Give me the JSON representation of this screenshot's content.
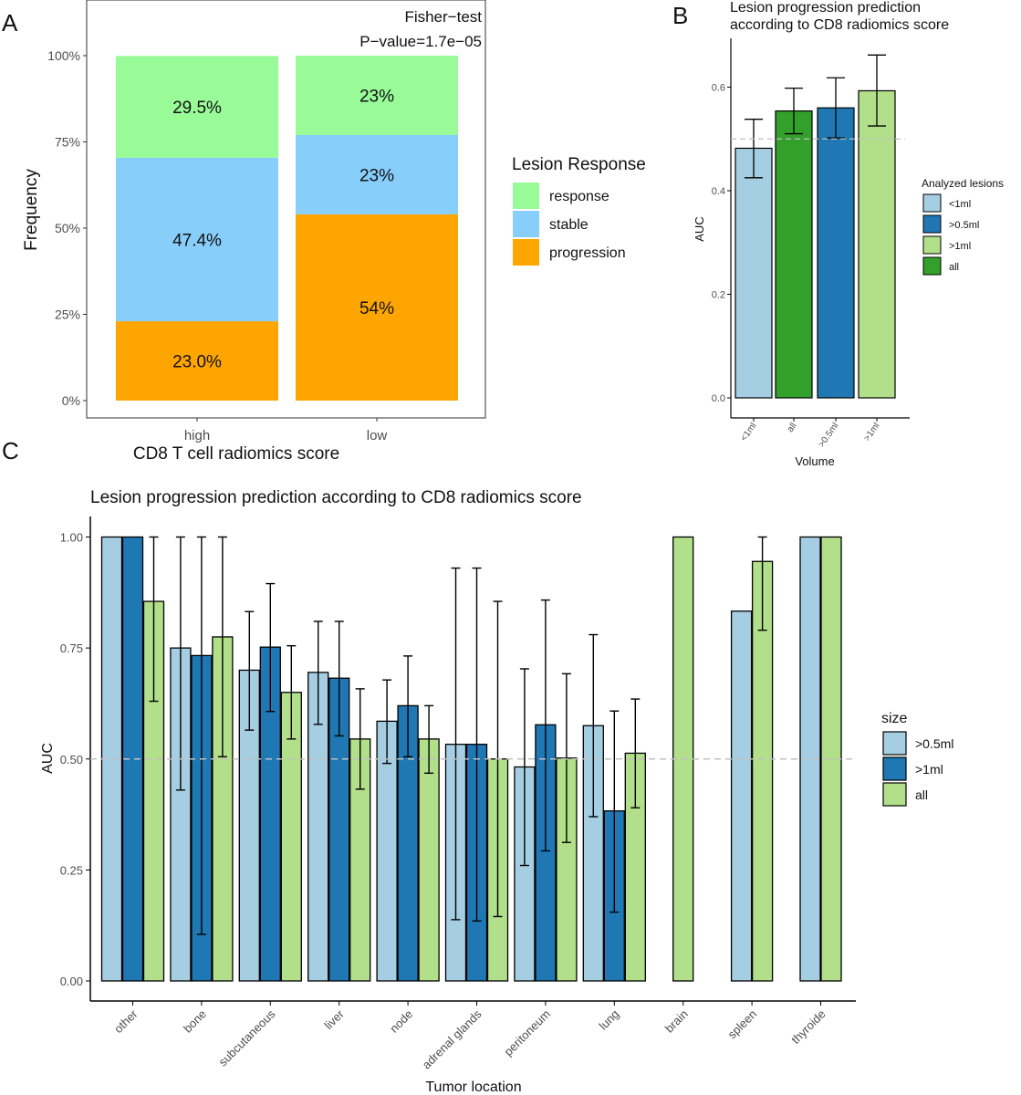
{
  "panels": {
    "a": {
      "letter": "A"
    },
    "b": {
      "letter": "B"
    },
    "c": {
      "letter": "C"
    }
  },
  "colors": {
    "response": "#98fb98",
    "stable": "#87cefa",
    "progression": "#ffa500",
    "light_blue": "#a6cee3",
    "dark_blue": "#1f78b4",
    "light_green": "#b2df8a",
    "dark_green": "#33a02c",
    "ref_line": "#c0c0c0"
  },
  "chart_data": [
    {
      "id": "panel-a",
      "type": "bar",
      "stacked": true,
      "title": "",
      "annotation": [
        "Fisher−test",
        "P−value=1.7e−05"
      ],
      "xlabel": "CD8 T cell radiomics score",
      "ylabel": "Frequency",
      "categories": [
        "high",
        "low"
      ],
      "ylim": [
        0,
        1
      ],
      "yticks": [
        0,
        0.25,
        0.5,
        0.75,
        1
      ],
      "ytick_labels": [
        "0%",
        "25%",
        "50%",
        "75%",
        "100%"
      ],
      "legend_title": "Lesion Response",
      "legend_position": "right",
      "panel_border": true,
      "grid": false,
      "series": [
        {
          "name": "progression",
          "values": [
            0.23,
            0.54
          ],
          "labels": [
            "23.0%",
            "54%"
          ]
        },
        {
          "name": "stable",
          "values": [
            0.474,
            0.23
          ],
          "labels": [
            "47.4%",
            "23%"
          ]
        },
        {
          "name": "response",
          "values": [
            0.295,
            0.23
          ],
          "labels": [
            "29.5%",
            "23%"
          ]
        }
      ],
      "legend_order": [
        "response",
        "stable",
        "progression"
      ]
    },
    {
      "id": "panel-b",
      "type": "bar",
      "title": "Lesion progression prediction\naccording to CD8 radiomics score",
      "xlabel": "Volume",
      "ylabel": "AUC",
      "categories": [
        "<1ml",
        "all",
        ">0.5ml",
        ">1ml"
      ],
      "values": [
        0.482,
        0.554,
        0.56,
        0.593
      ],
      "err_low": [
        0.425,
        0.51,
        0.502,
        0.525
      ],
      "err_high": [
        0.538,
        0.598,
        0.618,
        0.662
      ],
      "ylim": [
        -0.02,
        0.68
      ],
      "yticks": [
        0.0,
        0.2,
        0.4,
        0.6
      ],
      "ytick_labels": [
        "0.0",
        "0.2",
        "0.4",
        "0.6"
      ],
      "reference_line": 0.5,
      "legend_title": "Analyzed lesions",
      "legend_position": "right",
      "legend": [
        {
          "name": "<1ml",
          "color": "#a6cee3"
        },
        {
          "name": ">0.5ml",
          "color": "#1f78b4"
        },
        {
          "name": ">1ml",
          "color": "#b2df8a"
        },
        {
          "name": "all",
          "color": "#33a02c"
        }
      ],
      "grid": false
    },
    {
      "id": "panel-c",
      "type": "bar",
      "title": "Lesion progression prediction according to CD8 radiomics score",
      "xlabel": "Tumor location",
      "ylabel": "AUC",
      "categories": [
        "other",
        "bone",
        "subcutaneous",
        "liver",
        "node",
        "adrenal glands",
        "peritoneum",
        "lung",
        "brain",
        "spleen",
        "thyroide"
      ],
      "ylim": [
        -0.03,
        1.06
      ],
      "yticks": [
        0,
        0.25,
        0.5,
        0.75,
        1
      ],
      "ytick_labels": [
        "0.00",
        "0.25",
        "0.50",
        "0.75",
        "1.00"
      ],
      "reference_line": 0.5,
      "legend_title": "size",
      "legend_position": "right",
      "grid": false,
      "series": [
        {
          "name": ">0.5ml",
          "color": "#a6cee3",
          "values": [
            1.0,
            0.75,
            0.7,
            0.695,
            0.585,
            0.533,
            0.482,
            0.575,
            null,
            0.833,
            1.0
          ],
          "err_low": [
            null,
            0.43,
            0.565,
            0.578,
            0.49,
            0.138,
            0.26,
            0.37,
            null,
            null,
            null
          ],
          "err_high": [
            null,
            1.0,
            0.832,
            0.81,
            0.678,
            0.93,
            0.703,
            0.78,
            null,
            null,
            null
          ]
        },
        {
          "name": ">1ml",
          "color": "#1f78b4",
          "values": [
            1.0,
            0.733,
            0.752,
            0.682,
            0.62,
            0.533,
            0.577,
            0.383,
            null,
            null,
            null
          ],
          "err_low": [
            null,
            0.105,
            0.607,
            0.552,
            0.505,
            0.135,
            0.293,
            0.155,
            null,
            null,
            null
          ],
          "err_high": [
            null,
            1.0,
            0.895,
            0.81,
            0.732,
            0.93,
            0.858,
            0.608,
            null,
            null,
            null
          ]
        },
        {
          "name": "all",
          "color": "#b2df8a",
          "values": [
            0.855,
            0.775,
            0.65,
            0.545,
            0.545,
            0.5,
            0.502,
            0.513,
            1.0,
            0.945,
            1.0
          ],
          "err_low": [
            0.63,
            0.505,
            0.545,
            0.432,
            0.468,
            0.145,
            0.312,
            0.39,
            null,
            0.79,
            null
          ],
          "err_high": [
            1.0,
            1.0,
            0.755,
            0.658,
            0.62,
            0.855,
            0.692,
            0.635,
            null,
            1.0,
            null
          ]
        }
      ]
    }
  ]
}
